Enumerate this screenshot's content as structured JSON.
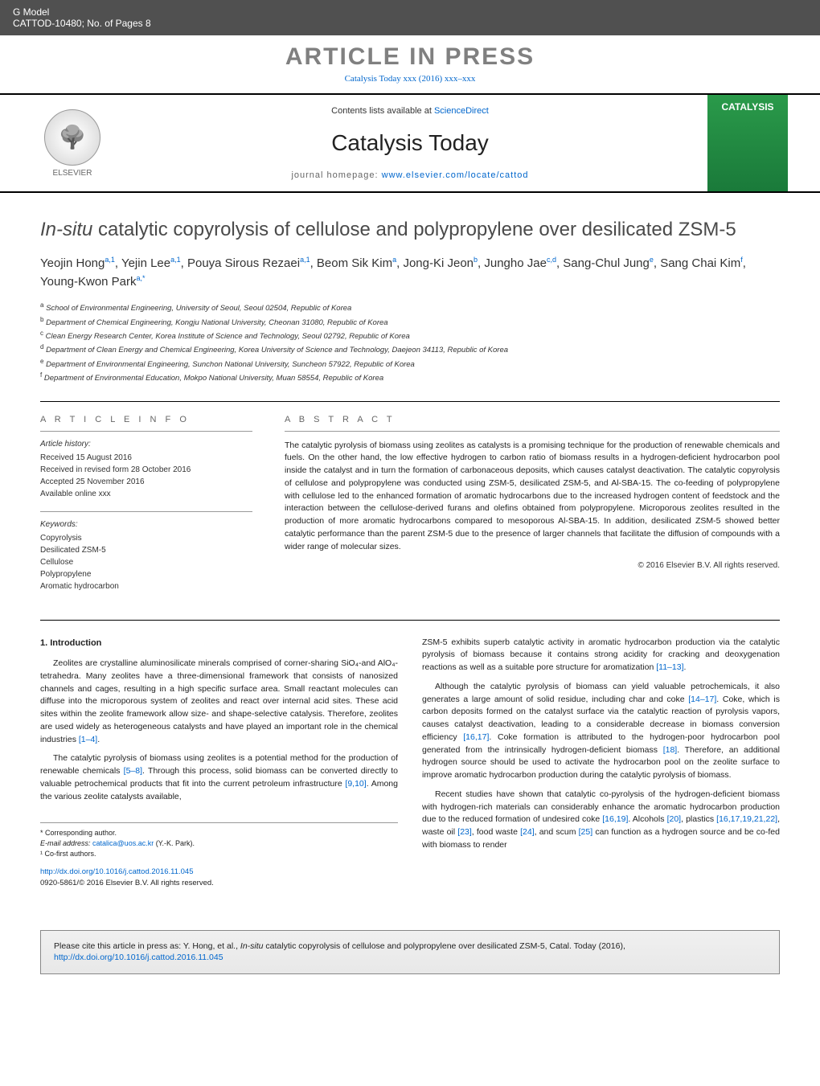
{
  "header": {
    "gmodel": "G Model",
    "code": "CATTOD-10480;   No. of Pages 8",
    "press_banner": "ARTICLE IN PRESS",
    "doi_line": "Catalysis Today xxx (2016) xxx–xxx"
  },
  "masthead": {
    "elsevier": "ELSEVIER",
    "contents_prefix": "Contents lists available at ",
    "contents_link": "ScienceDirect",
    "journal": "Catalysis Today",
    "homepage_prefix": "journal homepage: ",
    "homepage_link": "www.elsevier.com/locate/cattod",
    "cover_text": "CATALYSIS"
  },
  "article": {
    "title_italic": "In-situ",
    "title_rest": " catalytic copyrolysis of cellulose and polypropylene over desilicated ZSM-5",
    "authors_html": "Yeojin Hong<sup>a,1</sup>, Yejin Lee<sup>a,1</sup>, Pouya Sirous Rezaei<sup>a,1</sup>, Beom Sik Kim<sup>a</sup>, Jong-Ki Jeon<sup>b</sup>, Jungho Jae<sup>c,d</sup>, Sang-Chul Jung<sup>e</sup>, Sang Chai Kim<sup>f</sup>, Young-Kwon Park<sup>a,*</sup>",
    "affiliations": [
      {
        "tag": "a",
        "text": "School of Environmental Engineering, University of Seoul, Seoul 02504, Republic of Korea"
      },
      {
        "tag": "b",
        "text": "Department of Chemical Engineering, Kongju National University, Cheonan 31080, Republic of Korea"
      },
      {
        "tag": "c",
        "text": "Clean Energy Research Center, Korea Institute of Science and Technology, Seoul 02792, Republic of Korea"
      },
      {
        "tag": "d",
        "text": "Department of Clean Energy and Chemical Engineering, Korea University of Science and Technology, Daejeon 34113, Republic of Korea"
      },
      {
        "tag": "e",
        "text": "Department of Environmental Engineering, Sunchon National University, Suncheon 57922, Republic of Korea"
      },
      {
        "tag": "f",
        "text": "Department of Environmental Education, Mokpo National University, Muan 58554, Republic of Korea"
      }
    ]
  },
  "info": {
    "article_info_label": "A R T I C L E   I N F O",
    "abstract_label": "A B S T R A C T",
    "history_label": "Article history:",
    "history": [
      "Received 15 August 2016",
      "Received in revised form 28 October 2016",
      "Accepted 25 November 2016",
      "Available online xxx"
    ],
    "keywords_label": "Keywords:",
    "keywords": [
      "Copyrolysis",
      "Desilicated ZSM-5",
      "Cellulose",
      "Polypropylene",
      "Aromatic hydrocarbon"
    ],
    "abstract": "The catalytic pyrolysis of biomass using zeolites as catalysts is a promising technique for the production of renewable chemicals and fuels. On the other hand, the low effective hydrogen to carbon ratio of biomass results in a hydrogen-deficient hydrocarbon pool inside the catalyst and in turn the formation of carbonaceous deposits, which causes catalyst deactivation. The catalytic copyrolysis of cellulose and polypropylene was conducted using ZSM-5, desilicated ZSM-5, and Al-SBA-15. The co-feeding of polypropylene with cellulose led to the enhanced formation of aromatic hydrocarbons due to the increased hydrogen content of feedstock and the interaction between the cellulose-derived furans and olefins obtained from polypropylene. Microporous zeolites resulted in the production of more aromatic hydrocarbons compared to mesoporous Al-SBA-15. In addition, desilicated ZSM-5 showed better catalytic performance than the parent ZSM-5 due to the presence of larger channels that facilitate the diffusion of compounds with a wider range of molecular sizes.",
    "copyright": "© 2016 Elsevier B.V. All rights reserved."
  },
  "intro": {
    "heading": "1.  Introduction",
    "paras_col1": [
      "Zeolites are crystalline aluminosilicate minerals comprised of corner-sharing SiO₄-and AlO₄-tetrahedra. Many zeolites have a three-dimensional framework that consists of nanosized channels and cages, resulting in a high specific surface area. Small reactant molecules can diffuse into the microporous system of zeolites and react over internal acid sites. These acid sites within the zeolite framework allow size- and shape-selective catalysis. Therefore, zeolites are used widely as heterogeneous catalysts and have played an important role in the chemical industries [1–4].",
      "The catalytic pyrolysis of biomass using zeolites is a potential method for the production of renewable chemicals [5–8]. Through this process, solid biomass can be converted directly to valuable petrochemical products that fit into the current petroleum infrastructure [9,10]. Among the various zeolite catalysts available,"
    ],
    "paras_col2": [
      "ZSM-5 exhibits superb catalytic activity in aromatic hydrocarbon production via the catalytic pyrolysis of biomass because it contains strong acidity for cracking and deoxygenation reactions as well as a suitable pore structure for aromatization [11–13].",
      "Although the catalytic pyrolysis of biomass can yield valuable petrochemicals, it also generates a large amount of solid residue, including char and coke [14–17]. Coke, which is carbon deposits formed on the catalyst surface via the catalytic reaction of pyrolysis vapors, causes catalyst deactivation, leading to a considerable decrease in biomass conversion efficiency [16,17]. Coke formation is attributed to the hydrogen-poor hydrocarbon pool generated from the intrinsically hydrogen-deficient biomass [18]. Therefore, an additional hydrogen source should be used to activate the hydrocarbon pool on the zeolite surface to improve aromatic hydrocarbon production during the catalytic pyrolysis of biomass.",
      "Recent studies have shown that catalytic co-pyrolysis of the hydrogen-deficient biomass with hydrogen-rich materials can considerably enhance the aromatic hydrocarbon production due to the reduced formation of undesired coke [16,19]. Alcohols [20], plastics [16,17,19,21,22], waste oil [23], food waste [24], and scum [25] can function as a hydrogen source and be co-fed with biomass to render"
    ],
    "ref_links": {
      "r1": "[1–4]",
      "r2": "[5–8]",
      "r3": "[9,10]",
      "r4": "[11–13]",
      "r5": "[14–17]",
      "r6": "[16,17]",
      "r7": "[18]",
      "r8": "[16,19]",
      "r9": "[20]",
      "r10": "[16,17,19,21,22]",
      "r11": "[23]",
      "r12": "[24]",
      "r13": "[25]"
    }
  },
  "footnotes": {
    "corresponding": "* Corresponding author.",
    "email_label": "E-mail address: ",
    "email": "catalica@uos.ac.kr",
    "email_suffix": " (Y.-K. Park).",
    "cofirst": "¹ Co-first authors."
  },
  "doi": {
    "url": "http://dx.doi.org/10.1016/j.cattod.2016.11.045",
    "issn": "0920-5861/© 2016 Elsevier B.V. All rights reserved."
  },
  "citation": {
    "prefix": "Please cite this article in press as: Y. Hong, et al., ",
    "italic": "In-situ",
    "middle": " catalytic copyrolysis of cellulose and polypropylene over desilicated ZSM-5, Catal. Today (2016), ",
    "link": "http://dx.doi.org/10.1016/j.cattod.2016.11.045"
  },
  "colors": {
    "link": "#0066cc",
    "header_bg": "#505050",
    "banner_text": "#808080",
    "cover_bg": "#2a9a4a"
  }
}
